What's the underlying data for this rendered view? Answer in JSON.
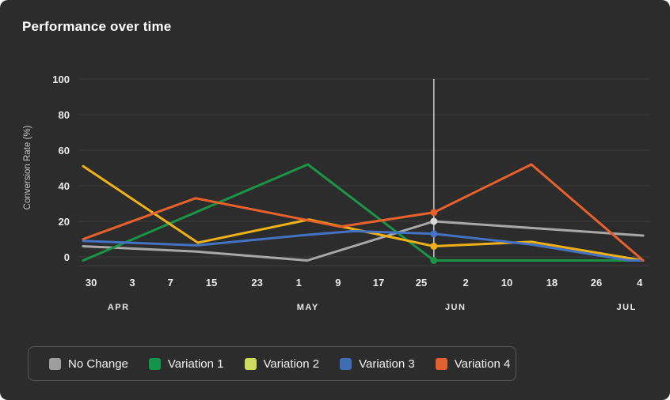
{
  "title": "Performance over time",
  "colors": {
    "background": "#2c2c2c",
    "grid": "#3c3c3c",
    "axis_text": "#ececec",
    "month_text": "#e8e8e8",
    "y_axis_title_text": "#c7c7c7",
    "crosshair": "#cfcfcf",
    "legend_border": "#585858",
    "title_text": "#ffffff"
  },
  "y_axis": {
    "label": "Conversion Rate (%)",
    "ticks": [
      100,
      80,
      60,
      40,
      20,
      0
    ],
    "min": -5,
    "max": 100
  },
  "x_axis": {
    "ticks": [
      {
        "label": "30",
        "f": 0.021
      },
      {
        "label": "3",
        "f": 0.093
      },
      {
        "label": "7",
        "f": 0.16
      },
      {
        "label": "15",
        "f": 0.232
      },
      {
        "label": "23",
        "f": 0.312
      },
      {
        "label": "1",
        "f": 0.385
      },
      {
        "label": "9",
        "f": 0.454
      },
      {
        "label": "17",
        "f": 0.525
      },
      {
        "label": "25",
        "f": 0.6
      },
      {
        "label": "2",
        "f": 0.678
      },
      {
        "label": "10",
        "f": 0.75
      },
      {
        "label": "18",
        "f": 0.829
      },
      {
        "label": "26",
        "f": 0.907
      },
      {
        "label": "4",
        "f": 0.983
      }
    ],
    "months": [
      {
        "label": "APR",
        "f": 0.069
      },
      {
        "label": "MAY",
        "f": 0.401
      },
      {
        "label": "JUN",
        "f": 0.66
      },
      {
        "label": "JUL",
        "f": 0.96
      }
    ]
  },
  "chart_data": {
    "type": "line",
    "title": "Performance over time",
    "xlabel": "",
    "ylabel": "Conversion Rate (%)",
    "ylim": [
      -5,
      100
    ],
    "grid": "horizontal",
    "legend_position": "bottom",
    "series": [
      {
        "name": "No Change",
        "color": "#a8a8a8",
        "legend_color": "#9e9e9e",
        "points": [
          {
            "f": 0.007,
            "v": 6,
            "date": "Mar 30"
          },
          {
            "f": 0.206,
            "v": 3,
            "date": "Apr 19"
          },
          {
            "f": 0.4,
            "v": -2,
            "date": "May 8"
          },
          {
            "f": 0.622,
            "v": 20,
            "date": "May 29"
          },
          {
            "f": 0.989,
            "v": 12,
            "date": "Jul 4"
          }
        ]
      },
      {
        "name": "Variation 1",
        "color": "#1b9448",
        "legend_color": "#14934a",
        "points": [
          {
            "f": 0.007,
            "v": -2,
            "date": "Mar 30"
          },
          {
            "f": 0.401,
            "v": 52,
            "date": "May 8"
          },
          {
            "f": 0.622,
            "v": -2,
            "date": "May 29"
          },
          {
            "f": 0.989,
            "v": -2,
            "date": "Jul 4"
          }
        ]
      },
      {
        "name": "Variation 2",
        "color": "#efb118",
        "legend_color": "#cddc5e",
        "points": [
          {
            "f": 0.007,
            "v": 51,
            "date": "Mar 30"
          },
          {
            "f": 0.208,
            "v": 8,
            "date": "Apr 19"
          },
          {
            "f": 0.403,
            "v": 21,
            "date": "May 8"
          },
          {
            "f": 0.622,
            "v": 6,
            "date": "May 29"
          },
          {
            "f": 0.793,
            "v": 8.5,
            "date": "Jun 15"
          },
          {
            "f": 0.989,
            "v": -2,
            "date": "Jul 4"
          }
        ]
      },
      {
        "name": "Variation 3",
        "color": "#4472c4",
        "legend_color": "#3e6cb5",
        "points": [
          {
            "f": 0.007,
            "v": 9,
            "date": "Mar 30"
          },
          {
            "f": 0.206,
            "v": 6.5,
            "date": "Apr 19"
          },
          {
            "f": 0.403,
            "v": 12.5,
            "date": "May 8"
          },
          {
            "f": 0.482,
            "v": 14.5,
            "date": "May 15"
          },
          {
            "f": 0.622,
            "v": 13,
            "date": "May 29"
          },
          {
            "f": 0.793,
            "v": 7,
            "date": "Jun 15"
          },
          {
            "f": 0.965,
            "v": -2,
            "date": "Jul 2"
          },
          {
            "f": 0.989,
            "v": -2,
            "date": "Jul 4"
          }
        ]
      },
      {
        "name": "Variation 4",
        "color": "#e8612c",
        "legend_color": "#e2602f",
        "points": [
          {
            "f": 0.007,
            "v": 10,
            "date": "Mar 30"
          },
          {
            "f": 0.204,
            "v": 33,
            "date": "Apr 19"
          },
          {
            "f": 0.458,
            "v": 17,
            "date": "May 13"
          },
          {
            "f": 0.622,
            "v": 25,
            "date": "May 29"
          },
          {
            "f": 0.793,
            "v": 52,
            "date": "Jun 15"
          },
          {
            "f": 0.989,
            "v": -2,
            "date": "Jul 4"
          }
        ]
      }
    ],
    "crosshair": {
      "f": 0.622,
      "date": "May 29",
      "dots": [
        {
          "series": "Variation 4",
          "v": 25,
          "dot_color": "#e8612c"
        },
        {
          "series": "No Change",
          "v": 20,
          "dot_color": "#d9d9d9"
        },
        {
          "series": "Variation 3",
          "v": 13,
          "dot_color": "#4472c4"
        },
        {
          "series": "Variation 2",
          "v": 6,
          "dot_color": "#efb118"
        },
        {
          "series": "Variation 1",
          "v": -2,
          "dot_color": "#1b9448"
        }
      ]
    }
  },
  "legend": {
    "items": [
      {
        "label": "No Change",
        "color": "#9e9e9e"
      },
      {
        "label": "Variation 1",
        "color": "#14934a"
      },
      {
        "label": "Variation 2",
        "color": "#cddc5e"
      },
      {
        "label": "Variation 3",
        "color": "#3e6cb5"
      },
      {
        "label": "Variation 4",
        "color": "#e2602f"
      }
    ]
  }
}
